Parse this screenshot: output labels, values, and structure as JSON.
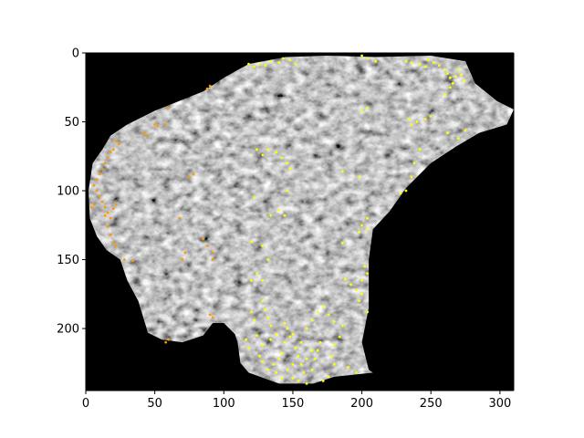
{
  "figure": {
    "background": "#ffffff",
    "plot_background": "#000000",
    "tissue_color": "#9a9a9a"
  },
  "axes": {
    "x": {
      "min": 0,
      "max": 310,
      "ticks": [
        0,
        50,
        100,
        150,
        200,
        250,
        300
      ],
      "tick_labels": [
        "0",
        "50",
        "100",
        "150",
        "200",
        "250",
        "300"
      ]
    },
    "y": {
      "min": 0,
      "max": 245,
      "inverted": true,
      "ticks": [
        0,
        50,
        100,
        150,
        200
      ],
      "tick_labels": [
        "0",
        "50",
        "100",
        "150",
        "200"
      ]
    }
  },
  "image": {
    "description_type": "grayscale-tissue-heatmap",
    "tissue_outline": [
      [
        85,
        28
      ],
      [
        100,
        18
      ],
      [
        118,
        8
      ],
      [
        145,
        3
      ],
      [
        175,
        2
      ],
      [
        210,
        3
      ],
      [
        250,
        2
      ],
      [
        275,
        6
      ],
      [
        282,
        22
      ],
      [
        298,
        35
      ],
      [
        310,
        41
      ],
      [
        305,
        52
      ],
      [
        285,
        58
      ],
      [
        268,
        68
      ],
      [
        250,
        80
      ],
      [
        232,
        98
      ],
      [
        220,
        115
      ],
      [
        208,
        128
      ],
      [
        205,
        150
      ],
      [
        205,
        185
      ],
      [
        200,
        210
      ],
      [
        205,
        230
      ],
      [
        208,
        232
      ],
      [
        180,
        235
      ],
      [
        165,
        240
      ],
      [
        140,
        240
      ],
      [
        118,
        232
      ],
      [
        112,
        225
      ],
      [
        110,
        210
      ],
      [
        108,
        204
      ],
      [
        100,
        196
      ],
      [
        92,
        196
      ],
      [
        85,
        205
      ],
      [
        70,
        210
      ],
      [
        55,
        208
      ],
      [
        45,
        203
      ],
      [
        38,
        180
      ],
      [
        30,
        165
      ],
      [
        25,
        150
      ],
      [
        15,
        143
      ],
      [
        8,
        133
      ],
      [
        3,
        120
      ],
      [
        2,
        100
      ],
      [
        5,
        80
      ],
      [
        12,
        70
      ],
      [
        18,
        60
      ],
      [
        30,
        52
      ],
      [
        50,
        42
      ],
      [
        65,
        36
      ]
    ]
  },
  "markers": {
    "orange": {
      "color": "#ff9900",
      "points": [
        [
          88,
          26
        ],
        [
          90,
          24
        ],
        [
          60,
          40
        ],
        [
          42,
          58
        ],
        [
          44,
          60
        ],
        [
          50,
          52
        ],
        [
          52,
          53
        ],
        [
          58,
          52
        ],
        [
          22,
          64
        ],
        [
          24,
          66
        ],
        [
          20,
          70
        ],
        [
          18,
          72
        ],
        [
          16,
          76
        ],
        [
          14,
          80
        ],
        [
          12,
          84
        ],
        [
          10,
          88
        ],
        [
          8,
          92
        ],
        [
          6,
          96
        ],
        [
          8,
          100
        ],
        [
          10,
          104
        ],
        [
          12,
          108
        ],
        [
          14,
          112
        ],
        [
          16,
          116
        ],
        [
          18,
          120
        ],
        [
          20,
          113
        ],
        [
          22,
          110
        ],
        [
          14,
          118
        ],
        [
          16,
          126
        ],
        [
          18,
          132
        ],
        [
          20,
          138
        ],
        [
          22,
          140
        ],
        [
          6,
          110
        ],
        [
          4,
          112
        ],
        [
          28,
          150
        ],
        [
          34,
          151
        ],
        [
          68,
          120
        ],
        [
          70,
          150
        ],
        [
          72,
          145
        ],
        [
          75,
          90
        ],
        [
          78,
          88
        ],
        [
          85,
          135
        ],
        [
          88,
          140
        ],
        [
          92,
          145
        ],
        [
          92,
          150
        ],
        [
          90,
          190
        ],
        [
          92,
          192
        ],
        [
          60,
          208
        ],
        [
          58,
          210
        ]
      ]
    },
    "yellow": {
      "color": "#ffff00",
      "points": [
        [
          118,
          8
        ],
        [
          122,
          10
        ],
        [
          126,
          8
        ],
        [
          130,
          9
        ],
        [
          134,
          6
        ],
        [
          140,
          7
        ],
        [
          143,
          4
        ],
        [
          148,
          5
        ],
        [
          152,
          8
        ],
        [
          200,
          2
        ],
        [
          204,
          4
        ],
        [
          210,
          6
        ],
        [
          232,
          6
        ],
        [
          236,
          7
        ],
        [
          242,
          8
        ],
        [
          246,
          10
        ],
        [
          248,
          5
        ],
        [
          252,
          7
        ],
        [
          256,
          9
        ],
        [
          260,
          12
        ],
        [
          262,
          15
        ],
        [
          264,
          18
        ],
        [
          266,
          22
        ],
        [
          268,
          17
        ],
        [
          270,
          12
        ],
        [
          272,
          16
        ],
        [
          274,
          20
        ],
        [
          264,
          25
        ],
        [
          260,
          30
        ],
        [
          200,
          42
        ],
        [
          204,
          40
        ],
        [
          234,
          48
        ],
        [
          236,
          52
        ],
        [
          240,
          50
        ],
        [
          246,
          48
        ],
        [
          250,
          46
        ],
        [
          262,
          58
        ],
        [
          270,
          62
        ],
        [
          275,
          56
        ],
        [
          242,
          70
        ],
        [
          238,
          80
        ],
        [
          236,
          90
        ],
        [
          232,
          100
        ],
        [
          228,
          102
        ],
        [
          198,
          90
        ],
        [
          186,
          86
        ],
        [
          124,
          70
        ],
        [
          128,
          74
        ],
        [
          132,
          70
        ],
        [
          138,
          72
        ],
        [
          142,
          76
        ],
        [
          146,
          80
        ],
        [
          148,
          84
        ],
        [
          122,
          105
        ],
        [
          134,
          118
        ],
        [
          140,
          114
        ],
        [
          144,
          118
        ],
        [
          146,
          100
        ],
        [
          200,
          125
        ],
        [
          204,
          128
        ],
        [
          198,
          130
        ],
        [
          204,
          120
        ],
        [
          186,
          138
        ],
        [
          120,
          137
        ],
        [
          128,
          140
        ],
        [
          132,
          150
        ],
        [
          124,
          160
        ],
        [
          128,
          165
        ],
        [
          120,
          165
        ],
        [
          188,
          164
        ],
        [
          192,
          168
        ],
        [
          196,
          172
        ],
        [
          200,
          175
        ],
        [
          202,
          155
        ],
        [
          204,
          160
        ],
        [
          200,
          165
        ],
        [
          198,
          180
        ],
        [
          204,
          188
        ],
        [
          128,
          180
        ],
        [
          130,
          186
        ],
        [
          132,
          192
        ],
        [
          134,
          198
        ],
        [
          120,
          188
        ],
        [
          122,
          194
        ],
        [
          116,
          208
        ],
        [
          118,
          214
        ],
        [
          126,
          220
        ],
        [
          128,
          224
        ],
        [
          132,
          230
        ],
        [
          136,
          226
        ],
        [
          140,
          222
        ],
        [
          142,
          218
        ],
        [
          144,
          210
        ],
        [
          148,
          206
        ],
        [
          146,
          200
        ],
        [
          150,
          204
        ],
        [
          152,
          214
        ],
        [
          154,
          220
        ],
        [
          156,
          226
        ],
        [
          158,
          232
        ],
        [
          150,
          236
        ],
        [
          154,
          238
        ],
        [
          160,
          240
        ],
        [
          164,
          230
        ],
        [
          166,
          222
        ],
        [
          168,
          216
        ],
        [
          170,
          210
        ],
        [
          178,
          220
        ],
        [
          180,
          226
        ],
        [
          190,
          228
        ],
        [
          196,
          232
        ],
        [
          176,
          235
        ],
        [
          172,
          238
        ],
        [
          138,
          232
        ],
        [
          142,
          236
        ],
        [
          146,
          230
        ],
        [
          150,
          226
        ],
        [
          160,
          222
        ],
        [
          164,
          216
        ],
        [
          180,
          212
        ],
        [
          184,
          206
        ],
        [
          186,
          198
        ],
        [
          124,
          205
        ],
        [
          128,
          212
        ],
        [
          134,
          208
        ],
        [
          138,
          204
        ],
        [
          144,
          196
        ],
        [
          156,
          210
        ],
        [
          160,
          200
        ],
        [
          164,
          194
        ],
        [
          168,
          188
        ],
        [
          172,
          184
        ],
        [
          176,
          190
        ],
        [
          180,
          195
        ]
      ]
    }
  }
}
